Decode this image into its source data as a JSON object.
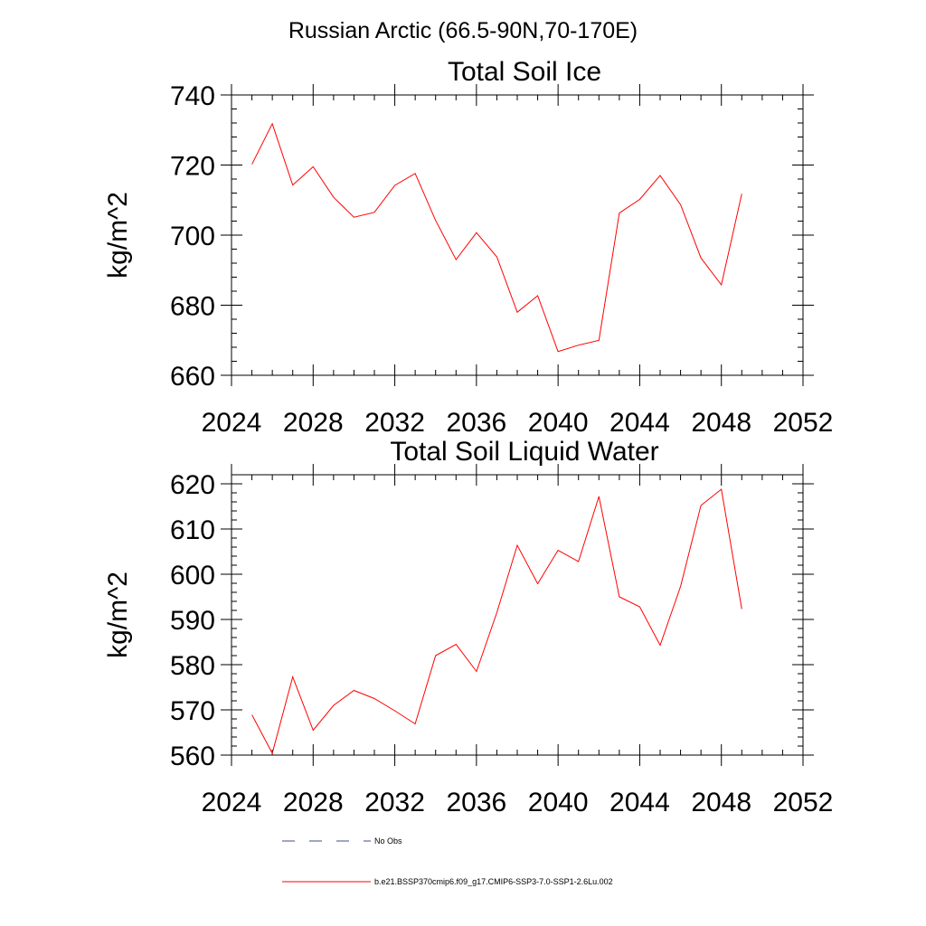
{
  "figure": {
    "title": "Russian Arctic (66.5-90N,70-170E)"
  },
  "chart_data": [
    {
      "type": "line",
      "title": "Total Soil Ice",
      "xlabel": "",
      "ylabel": "kg/m^2",
      "xlim": [
        2024,
        2052
      ],
      "ylim": [
        660,
        740
      ],
      "xticks": [
        2024,
        2028,
        2032,
        2036,
        2040,
        2044,
        2048,
        2052
      ],
      "yticks": [
        660,
        680,
        700,
        720,
        740
      ],
      "x_minor_step": 1,
      "y_minor_step": 4,
      "grid": false,
      "x": [
        2025,
        2026,
        2027,
        2028,
        2029,
        2030,
        2031,
        2032,
        2033,
        2034,
        2035,
        2036,
        2037,
        2038,
        2039,
        2040,
        2041,
        2042,
        2043,
        2044,
        2045,
        2046,
        2047,
        2048,
        2049
      ],
      "series": [
        {
          "color": "#ff0000",
          "values": [
            720.2,
            731.8,
            714.3,
            719.5,
            710.8,
            705.1,
            706.5,
            714.2,
            717.6,
            704.2,
            693.0,
            700.7,
            693.8,
            678.0,
            682.7,
            666.8,
            668.6,
            670.0,
            706.3,
            710.2,
            717.0,
            708.7,
            693.5,
            685.8,
            711.8
          ]
        }
      ]
    },
    {
      "type": "line",
      "title": "Total Soil Liquid Water",
      "xlabel": "",
      "ylabel": "kg/m^2",
      "xlim": [
        2024,
        2052
      ],
      "ylim": [
        560,
        622
      ],
      "xticks": [
        2024,
        2028,
        2032,
        2036,
        2040,
        2044,
        2048,
        2052
      ],
      "yticks": [
        560,
        570,
        580,
        590,
        600,
        610,
        620
      ],
      "x_minor_step": 1,
      "y_minor_step": 2,
      "grid": false,
      "x": [
        2025,
        2026,
        2027,
        2028,
        2029,
        2030,
        2031,
        2032,
        2033,
        2034,
        2035,
        2036,
        2037,
        2038,
        2039,
        2040,
        2041,
        2042,
        2043,
        2044,
        2045,
        2046,
        2047,
        2048,
        2049
      ],
      "series": [
        {
          "color": "#ff0000",
          "values": [
            568.9,
            560.4,
            577.3,
            565.5,
            571.0,
            574.3,
            572.5,
            569.8,
            566.9,
            582.0,
            584.5,
            578.5,
            591.5,
            606.4,
            597.9,
            605.3,
            602.8,
            617.2,
            595.0,
            592.8,
            584.3,
            597.3,
            615.2,
            618.8,
            592.3
          ]
        }
      ]
    }
  ],
  "legend": {
    "position": "bottom-center",
    "items": [
      {
        "label": "No Obs",
        "color": "#3d4d8a",
        "style": "dashed"
      },
      {
        "label": "b.e21.BSSP370cmip6.f09_g17.CMIP6-SSP3-7.0-SSP1-2.6Lu.002",
        "color": "#ff0000",
        "style": "solid"
      }
    ]
  }
}
